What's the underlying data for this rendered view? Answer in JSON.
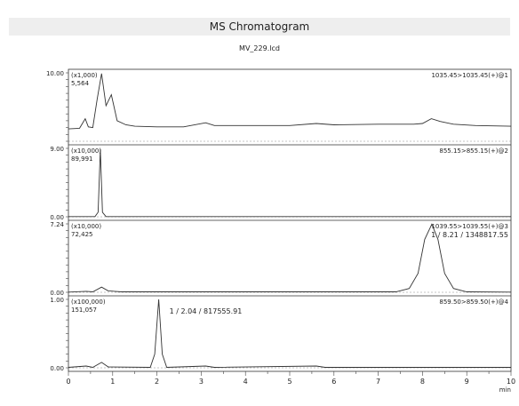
{
  "header": {
    "title": "MS Chromatogram",
    "subtitle": "MV_229.lcd"
  },
  "chart_data": {
    "type": "line",
    "xlabel": "min",
    "xlim": [
      0,
      10
    ],
    "x_ticks": [
      "0",
      "1",
      "2",
      "3",
      "4",
      "5",
      "6",
      "7",
      "8",
      "9",
      "10"
    ],
    "line_color": "#333333",
    "panels": [
      {
        "multiplier": "(x1,000)",
        "max_intensity": "5,564",
        "y_top_label": "10.00",
        "y_bottom_label": "",
        "ylim": [
          0,
          10
        ],
        "trace_label": "1035.45>1035.45(+)@1",
        "peak_annotation": "",
        "points": [
          [
            0,
            1.8
          ],
          [
            0.25,
            1.9
          ],
          [
            0.38,
            3.3
          ],
          [
            0.45,
            2.1
          ],
          [
            0.55,
            2.0
          ],
          [
            0.65,
            6.2
          ],
          [
            0.75,
            9.9
          ],
          [
            0.85,
            5.2
          ],
          [
            0.97,
            6.8
          ],
          [
            1.1,
            3.0
          ],
          [
            1.3,
            2.4
          ],
          [
            1.5,
            2.2
          ],
          [
            2.0,
            2.1
          ],
          [
            2.6,
            2.1
          ],
          [
            3.1,
            2.7
          ],
          [
            3.3,
            2.3
          ],
          [
            4.0,
            2.3
          ],
          [
            5.0,
            2.3
          ],
          [
            5.6,
            2.6
          ],
          [
            6.0,
            2.4
          ],
          [
            7.0,
            2.5
          ],
          [
            7.8,
            2.5
          ],
          [
            8.0,
            2.6
          ],
          [
            8.2,
            3.3
          ],
          [
            8.4,
            2.9
          ],
          [
            8.7,
            2.5
          ],
          [
            9.2,
            2.3
          ],
          [
            10.0,
            2.2
          ]
        ]
      },
      {
        "multiplier": "(x10,000)",
        "max_intensity": "89,991",
        "y_top_label": "9.00",
        "y_bottom_label": "0.00",
        "ylim": [
          0,
          9
        ],
        "trace_label": "855.15>855.15(+)@2",
        "peak_annotation": "",
        "points": [
          [
            0,
            0.02
          ],
          [
            0.6,
            0.02
          ],
          [
            0.67,
            0.6
          ],
          [
            0.72,
            8.9
          ],
          [
            0.77,
            0.6
          ],
          [
            0.85,
            0.02
          ],
          [
            10.0,
            0.02
          ]
        ]
      },
      {
        "multiplier": "(x10,000)",
        "max_intensity": "72,425",
        "y_top_label": "7.24",
        "y_bottom_label": "0.00",
        "ylim": [
          0,
          7.24
        ],
        "trace_label": "1039.55>1039.55(+)@3",
        "peak_annotation": "1 / 8.21 / 1348817.55",
        "points": [
          [
            0,
            0.02
          ],
          [
            0.4,
            0.1
          ],
          [
            0.55,
            0.05
          ],
          [
            0.75,
            0.55
          ],
          [
            0.9,
            0.15
          ],
          [
            1.2,
            0.05
          ],
          [
            7.4,
            0.05
          ],
          [
            7.7,
            0.4
          ],
          [
            7.9,
            2.0
          ],
          [
            8.05,
            5.6
          ],
          [
            8.21,
            7.2
          ],
          [
            8.35,
            5.6
          ],
          [
            8.5,
            2.0
          ],
          [
            8.7,
            0.4
          ],
          [
            9.0,
            0.05
          ],
          [
            10.0,
            0.02
          ]
        ]
      },
      {
        "multiplier": "(x100,000)",
        "max_intensity": "151,057",
        "y_top_label": "1.00",
        "y_bottom_label": "0.00",
        "ylim": [
          0,
          1.51
        ],
        "trace_label": "859.50>859.50(+)@4",
        "peak_annotation": "1 / 2.04 / 817555.91",
        "points": [
          [
            0,
            0.01
          ],
          [
            0.4,
            0.04
          ],
          [
            0.55,
            0.01
          ],
          [
            0.75,
            0.12
          ],
          [
            0.9,
            0.02
          ],
          [
            1.85,
            0.01
          ],
          [
            1.95,
            0.3
          ],
          [
            2.04,
            1.51
          ],
          [
            2.12,
            0.3
          ],
          [
            2.22,
            0.01
          ],
          [
            3.1,
            0.04
          ],
          [
            3.3,
            0.01
          ],
          [
            5.6,
            0.04
          ],
          [
            5.8,
            0.01
          ],
          [
            10.0,
            0.01
          ]
        ]
      }
    ]
  }
}
